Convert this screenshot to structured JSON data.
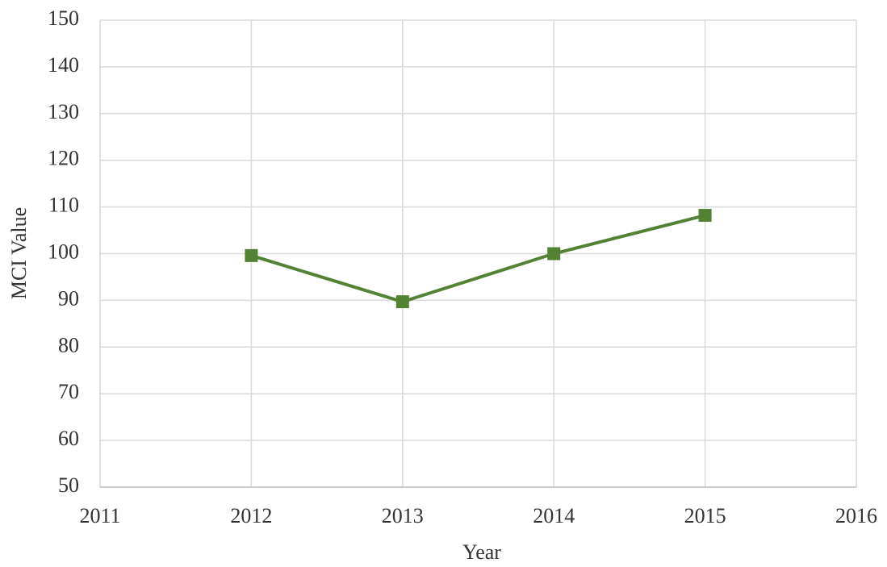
{
  "chart_data": {
    "type": "line",
    "x_label": "Year",
    "y_label": "MCI Value",
    "x": [
      2012,
      2013,
      2014,
      2015
    ],
    "series": [
      {
        "name": "MCI Value",
        "color": "#548235",
        "values": [
          99.6,
          89.7,
          100,
          108.2
        ]
      }
    ],
    "xlim": [
      2011,
      2016
    ],
    "xticks": [
      2011,
      2012,
      2013,
      2014,
      2015,
      2016
    ],
    "ylim": [
      50,
      150
    ],
    "yticks": [
      50,
      60,
      70,
      80,
      90,
      100,
      110,
      120,
      130,
      140,
      150
    ],
    "grid": true,
    "marker": "square"
  }
}
